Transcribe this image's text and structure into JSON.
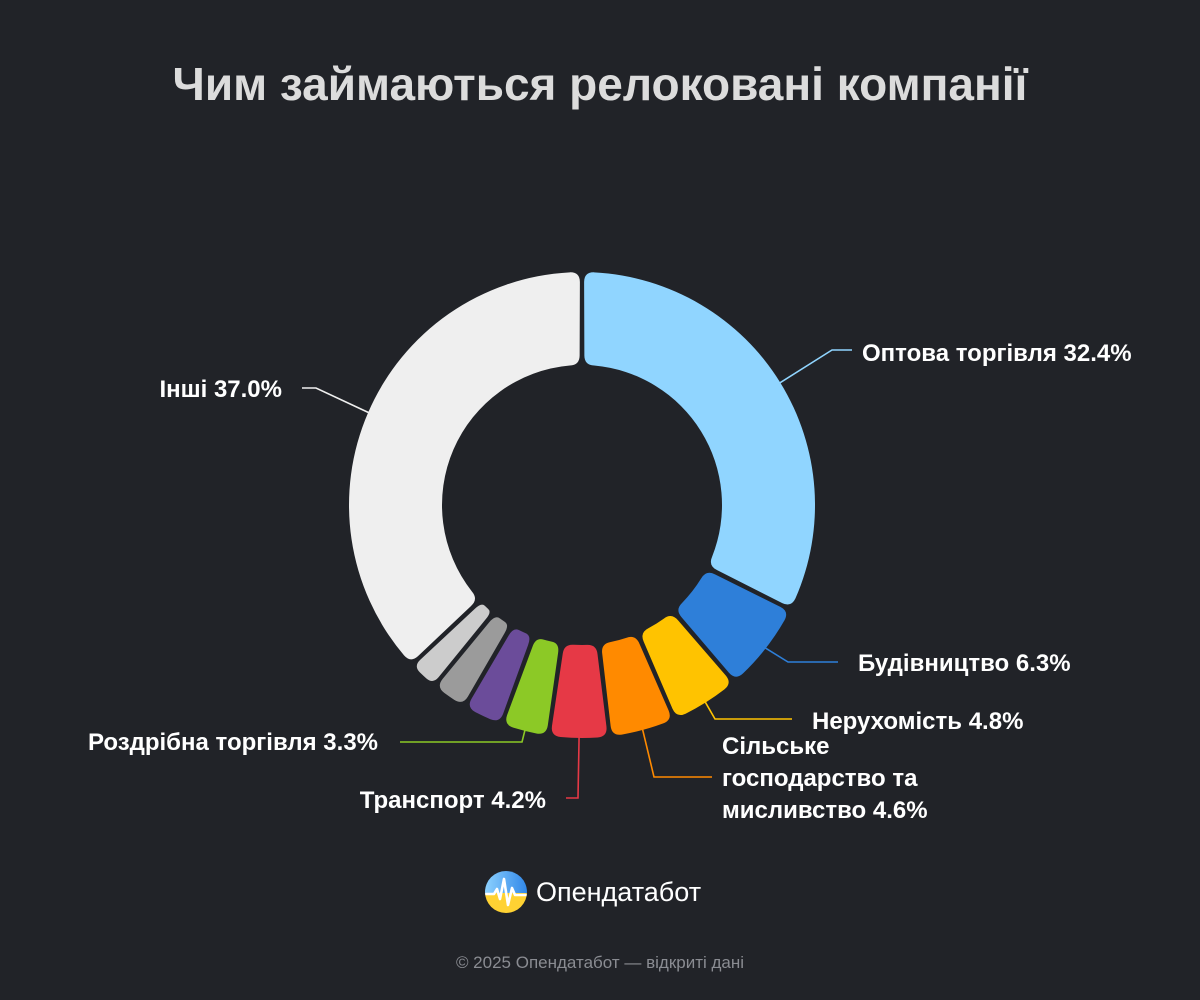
{
  "title": "Чим займаються релоковані компанії",
  "chart_data": {
    "type": "pie",
    "variant": "donut",
    "slices": [
      {
        "name": "Оптова торгівля",
        "value": 32.4,
        "label": "Оптова торгівля 32.4%",
        "color": "#90d5ff"
      },
      {
        "name": "Будівництво",
        "value": 6.3,
        "label": "Будівництво 6.3%",
        "color": "#2e7fd9"
      },
      {
        "name": "Нерухомість",
        "value": 4.8,
        "label": "Нерухомість 4.8%",
        "color": "#ffc300"
      },
      {
        "name": "Сільське господарство та мисливство",
        "value": 4.6,
        "label_lines": [
          "Сільське",
          "господарство та",
          "мисливство 4.6%"
        ],
        "color": "#ff8a00"
      },
      {
        "name": "Транспорт",
        "value": 4.2,
        "label": "Транспорт 4.2%",
        "color": "#e63946"
      },
      {
        "name": "Роздрібна торгівля",
        "value": 3.3,
        "label": "Роздрібна торгівля 3.3%",
        "color": "#8cc926"
      },
      {
        "name": "",
        "value": 2.8,
        "color": "#6b4c9a"
      },
      {
        "name": "",
        "value": 2.5,
        "color": "#9b9b9b"
      },
      {
        "name": "",
        "value": 2.1,
        "color": "#cccccc"
      },
      {
        "name": "Інші",
        "value": 37.0,
        "label": "Інші 37.0%",
        "color": "#efefef"
      }
    ]
  },
  "brand": {
    "name": "Опендатабот",
    "logo_icon": "opendatabot-logo-icon"
  },
  "footer": "© 2025 Опендатабот — відкриті дані"
}
